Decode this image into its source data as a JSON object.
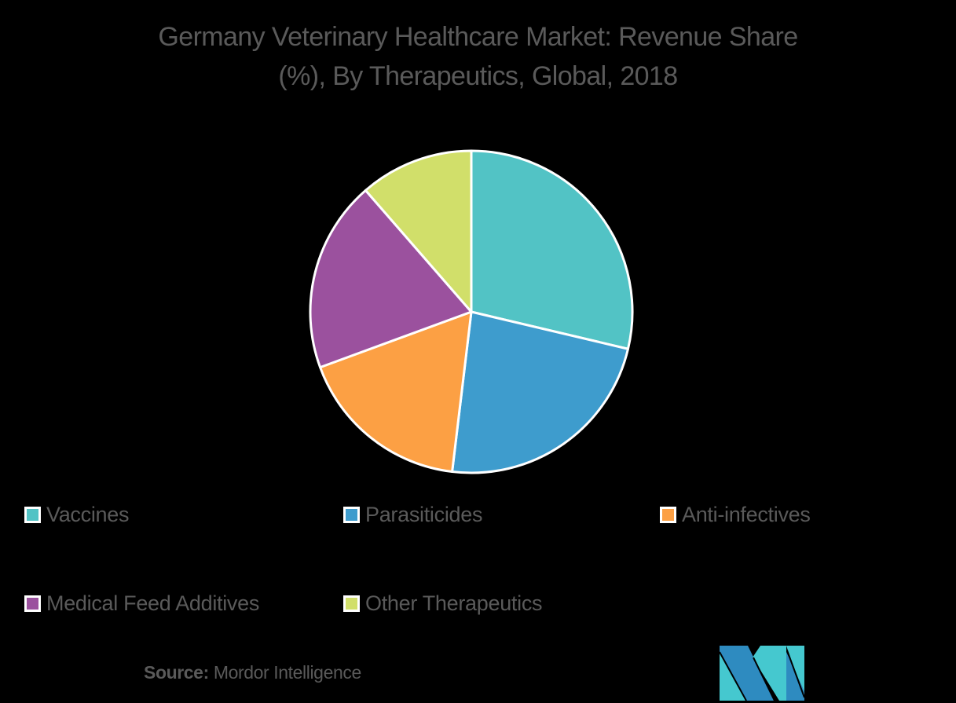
{
  "chart_data": {
    "type": "pie",
    "title": "Germany Veterinary Healthcare Market: Revenue Share (%), By Therapeutics, Global, 2018",
    "title_lines": [
      "Germany Veterinary Healthcare Market: Revenue Share",
      "(%), By Therapeutics, Global, 2018"
    ],
    "categories": [
      "Vaccines",
      "Parasiticides",
      "Anti-infectives",
      "Medical Feed Additives",
      "Other Therapeutics"
    ],
    "values": [
      28.7,
      23.2,
      17.5,
      19.2,
      11.4
    ],
    "colors": [
      "#52c3c5",
      "#3e9ccd",
      "#fca044",
      "#9b519e",
      "#d1df6a"
    ],
    "start_angle_deg": 0,
    "direction": "clockwise",
    "legend_position": "bottom",
    "data_labels": false
  },
  "legend": [
    {
      "label": "Vaccines",
      "color": "#52c3c5"
    },
    {
      "label": "Parasiticides",
      "color": "#3e9ccd"
    },
    {
      "label": "Anti-infectives",
      "color": "#fca044"
    },
    {
      "label": "Medical Feed Additives",
      "color": "#9b519e"
    },
    {
      "label": "Other Therapeutics",
      "color": "#d1df6a"
    }
  ],
  "source": {
    "prefix": "Source:",
    "text": "Mordor Intelligence"
  },
  "logo": {
    "icon": "mordor-intelligence-logo-icon",
    "colors": [
      "#2e8bc0",
      "#45c8cf"
    ]
  }
}
